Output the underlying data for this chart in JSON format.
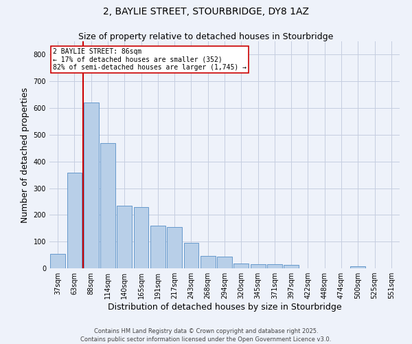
{
  "title1": "2, BAYLIE STREET, STOURBRIDGE, DY8 1AZ",
  "title2": "Size of property relative to detached houses in Stourbridge",
  "xlabel": "Distribution of detached houses by size in Stourbridge",
  "ylabel": "Number of detached properties",
  "categories": [
    "37sqm",
    "63sqm",
    "88sqm",
    "114sqm",
    "140sqm",
    "165sqm",
    "191sqm",
    "217sqm",
    "243sqm",
    "268sqm",
    "294sqm",
    "320sqm",
    "345sqm",
    "371sqm",
    "397sqm",
    "422sqm",
    "448sqm",
    "474sqm",
    "500sqm",
    "525sqm",
    "551sqm"
  ],
  "values": [
    55,
    358,
    620,
    468,
    235,
    230,
    160,
    155,
    95,
    47,
    45,
    18,
    16,
    16,
    14,
    0,
    0,
    0,
    7,
    0,
    0
  ],
  "bar_color": "#b8cfe8",
  "bar_edge_color": "#6699cc",
  "vline_x_index": 1.5,
  "vline_color": "#cc0000",
  "annotation_line1": "2 BAYLIE STREET: 86sqm",
  "annotation_line2": "← 17% of detached houses are smaller (352)",
  "annotation_line3": "82% of semi-detached houses are larger (1,745) →",
  "annotation_box_color": "white",
  "annotation_box_edge_color": "#cc0000",
  "ylim": [
    0,
    850
  ],
  "yticks": [
    0,
    100,
    200,
    300,
    400,
    500,
    600,
    700,
    800
  ],
  "footer": "Contains HM Land Registry data © Crown copyright and database right 2025.\nContains public sector information licensed under the Open Government Licence v3.0.",
  "bg_color": "#eef2fa",
  "plot_bg_color": "#eef2fa",
  "grid_color": "#c5cde0",
  "title_fontsize": 10,
  "subtitle_fontsize": 9,
  "tick_fontsize": 7,
  "annotation_fontsize": 7,
  "footer_fontsize": 6
}
